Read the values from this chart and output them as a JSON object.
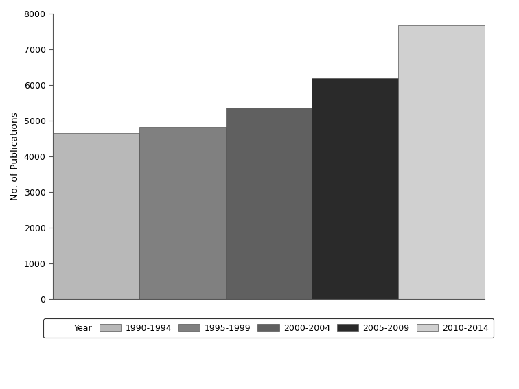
{
  "categories": [
    "1990-1994",
    "1995-1999",
    "2000-2004",
    "2005-2009",
    "2010-2014"
  ],
  "values": [
    4650,
    4820,
    5370,
    6200,
    7680
  ],
  "bar_colors": [
    "#b8b8b8",
    "#808080",
    "#606060",
    "#2a2a2a",
    "#d0d0d0"
  ],
  "ylabel": "No. of Publications",
  "ylim": [
    0,
    8000
  ],
  "yticks": [
    0,
    1000,
    2000,
    3000,
    4000,
    5000,
    6000,
    7000,
    8000
  ],
  "legend_label": "Year",
  "background_color": "#ffffff",
  "bar_edge_color": "#555555"
}
